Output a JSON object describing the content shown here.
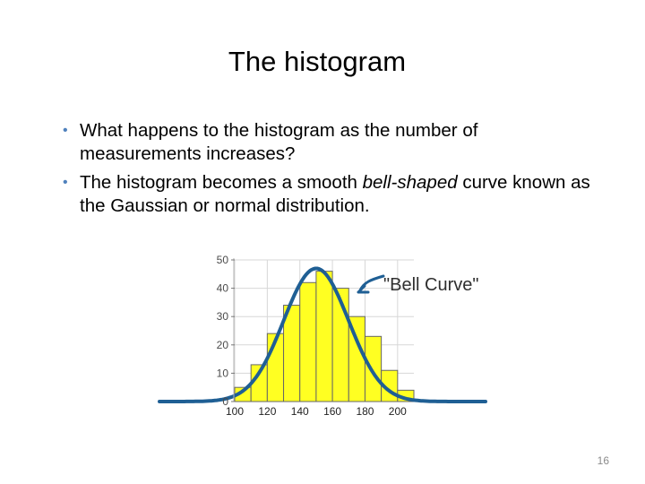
{
  "slide": {
    "title": "The histogram",
    "bullets": [
      {
        "text": "What happens to the histogram as the number of measurements increases?"
      },
      {
        "before": "The histogram becomes a smooth ",
        "emphasis": "bell-shaped",
        "after": " curve known as the Gaussian or normal distribution."
      }
    ],
    "page_number": "16"
  },
  "colors": {
    "bullet": "#4f81bd",
    "bars": "#ffff22",
    "bar_outline": "#666666",
    "curve": "#1f5f94",
    "annotation": "#1f5f94",
    "grid": "#d7d7d7"
  },
  "chart_data": {
    "type": "bar",
    "x": [
      100,
      110,
      120,
      130,
      140,
      150,
      160,
      170,
      180,
      190,
      200
    ],
    "values": [
      5,
      13,
      24,
      34,
      42,
      46,
      40,
      30,
      23,
      11,
      4
    ],
    "curve": {
      "type": "normal",
      "mean": 150,
      "sd": 20,
      "peak": 47
    },
    "x_ticks": [
      100,
      120,
      140,
      160,
      180,
      200
    ],
    "y_ticks": [
      0,
      10,
      20,
      30,
      40,
      50
    ],
    "xlim": [
      100,
      210
    ],
    "ylim": [
      0,
      50
    ],
    "grid": true,
    "title": "",
    "xlabel": "",
    "ylabel": "",
    "annotation": {
      "text": "\"Bell Curve\""
    }
  }
}
